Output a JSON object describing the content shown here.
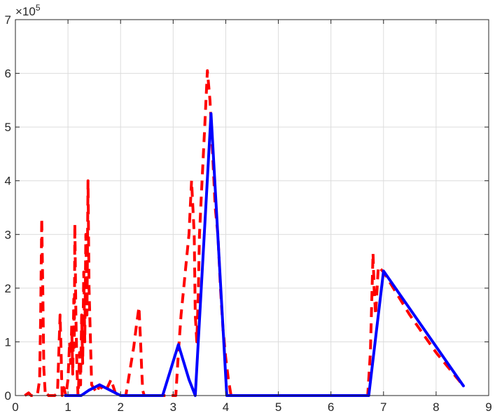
{
  "chart_data": {
    "type": "line",
    "title": "",
    "xlabel": "",
    "ylabel": "",
    "xlim": [
      0,
      9
    ],
    "ylim": [
      0,
      700000
    ],
    "xticks": [
      0,
      1,
      2,
      3,
      4,
      5,
      6,
      7,
      8,
      9
    ],
    "yticks": [
      0,
      100000,
      200000,
      300000,
      400000,
      500000,
      600000,
      700000
    ],
    "xtick_labels": [
      "0",
      "1",
      "2",
      "3",
      "4",
      "5",
      "6",
      "7",
      "8",
      "9"
    ],
    "ytick_labels": [
      "0",
      "1",
      "2",
      "3",
      "4",
      "5",
      "6",
      "7"
    ],
    "y_exponent": {
      "base": "×10",
      "power": "5"
    },
    "grid": true,
    "series": [
      {
        "style": "dashed",
        "color": "#ff0000",
        "x": [
          0.18,
          0.25,
          0.3,
          0.36,
          0.42,
          0.46,
          0.48,
          0.5,
          0.52,
          0.54,
          0.57,
          0.6,
          0.63,
          0.66,
          0.75,
          0.8,
          0.85,
          0.87,
          0.88,
          0.89,
          0.92,
          0.96,
          1.0,
          1.03,
          1.05,
          1.07,
          1.09,
          1.11,
          1.12,
          1.13,
          1.15,
          1.17,
          1.19,
          1.2,
          1.22,
          1.24,
          1.26,
          1.28,
          1.3,
          1.32,
          1.34,
          1.36,
          1.38,
          1.4,
          1.45,
          1.55,
          1.6,
          1.68,
          1.75,
          1.82,
          1.85,
          1.9,
          2.0,
          2.1,
          2.15,
          2.2,
          2.25,
          2.3,
          2.35,
          2.38,
          2.4,
          2.42,
          2.45,
          2.5,
          2.7,
          3.0,
          3.05,
          3.1,
          3.15,
          3.2,
          3.25,
          3.3,
          3.35,
          3.4,
          3.42,
          3.45,
          3.48,
          3.5,
          3.55,
          3.6,
          3.65,
          3.7,
          3.75,
          3.8,
          3.85,
          3.9,
          3.95,
          4.0,
          4.05,
          4.1,
          4.5,
          5.0,
          5.5,
          6.0,
          6.5,
          6.7,
          6.75,
          6.8,
          6.82,
          6.85,
          6.9,
          7.0,
          7.5,
          8.0,
          8.52
        ],
        "y": [
          0,
          5000,
          0,
          0,
          2000,
          30000,
          150000,
          330000,
          200000,
          50000,
          0,
          3000,
          0,
          0,
          0,
          5000,
          150000,
          80000,
          30000,
          0,
          15000,
          0,
          30000,
          100000,
          60000,
          130000,
          40000,
          180000,
          90000,
          320000,
          150000,
          50000,
          0,
          10000,
          80000,
          20000,
          150000,
          60000,
          230000,
          100000,
          300000,
          150000,
          400000,
          200000,
          20000,
          5000,
          20000,
          8000,
          15000,
          30000,
          20000,
          5000,
          0,
          0,
          30000,
          60000,
          90000,
          130000,
          165000,
          100000,
          50000,
          10000,
          0,
          0,
          0,
          0,
          0,
          80000,
          150000,
          200000,
          250000,
          300000,
          400000,
          300000,
          150000,
          100000,
          200000,
          300000,
          400000,
          500000,
          605000,
          550000,
          450000,
          350000,
          300000,
          200000,
          120000,
          70000,
          30000,
          0,
          0,
          0,
          0,
          0,
          0,
          0,
          80000,
          265000,
          200000,
          150000,
          240000,
          230000,
          150000,
          80000,
          18000
        ]
      },
      {
        "style": "solid",
        "color": "#0000ff",
        "x": [
          0.95,
          1.25,
          1.4,
          1.6,
          1.8,
          2.0,
          2.5,
          2.8,
          3.1,
          3.3,
          3.42,
          3.72,
          4.02,
          5.0,
          6.0,
          6.72,
          7.0,
          8.52
        ],
        "y": [
          0,
          0,
          10000,
          20000,
          10000,
          0,
          0,
          0,
          95000,
          30000,
          0,
          525000,
          0,
          0,
          0,
          0,
          232000,
          18000
        ]
      }
    ]
  }
}
